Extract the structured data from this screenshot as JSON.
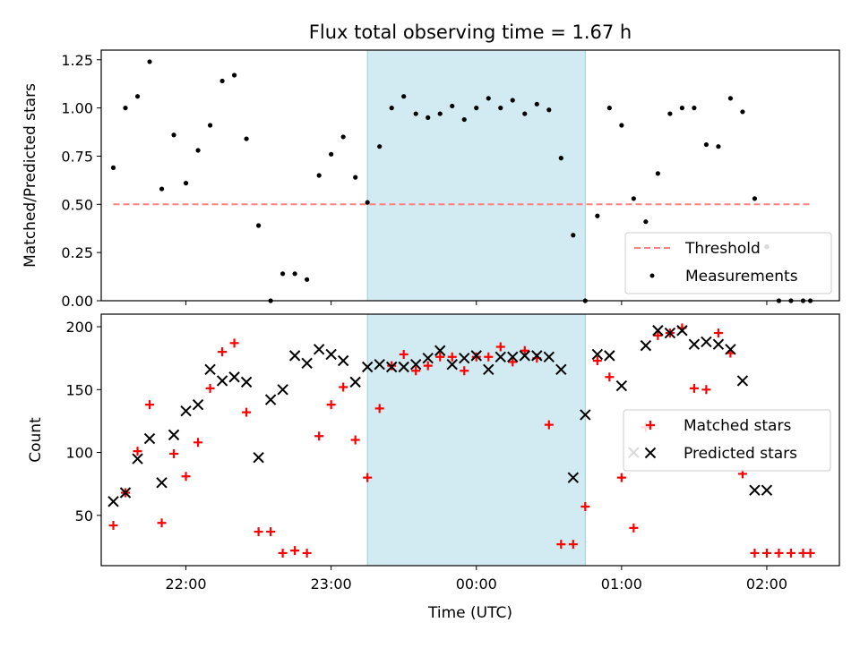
{
  "chart_data": [
    {
      "type": "scatter",
      "title": "Flux total observing time = 1.67 h",
      "xlabel": "",
      "ylabel": "Matched/Predicted stars",
      "xlim": [
        "21:25",
        "02:30"
      ],
      "ylim": [
        0,
        1.3
      ],
      "yticks": [
        "0.00",
        "0.25",
        "0.50",
        "0.75",
        "1.00",
        "1.25"
      ],
      "highlight_span": [
        "23:15",
        "00:45"
      ],
      "highlight_color": "#add8e6",
      "legend_position": "lower right",
      "threshold": {
        "name": "Threshold",
        "value": 0.5,
        "x_range": [
          "21:30",
          "02:18"
        ],
        "color": "#ff8080",
        "style": "dashed"
      },
      "series": [
        {
          "name": "Measurements",
          "color": "#000000",
          "marker": "dot",
          "x": [
            "21:30",
            "21:35",
            "21:40",
            "21:45",
            "21:50",
            "21:55",
            "22:00",
            "22:05",
            "22:10",
            "22:15",
            "22:20",
            "22:25",
            "22:30",
            "22:35",
            "22:40",
            "22:45",
            "22:50",
            "22:55",
            "23:00",
            "23:05",
            "23:10",
            "23:15",
            "23:20",
            "23:25",
            "23:30",
            "23:35",
            "23:40",
            "23:45",
            "23:50",
            "23:55",
            "00:00",
            "00:05",
            "00:10",
            "00:15",
            "00:20",
            "00:25",
            "00:30",
            "00:35",
            "00:40",
            "00:45",
            "00:50",
            "00:55",
            "01:00",
            "01:05",
            "01:10",
            "01:15",
            "01:20",
            "01:25",
            "01:30",
            "01:35",
            "01:40",
            "01:45",
            "01:50",
            "01:55",
            "02:00",
            "02:05",
            "02:10",
            "02:15",
            "02:18"
          ],
          "y": [
            0.69,
            1.0,
            1.06,
            1.24,
            0.58,
            0.86,
            0.61,
            0.78,
            0.91,
            1.14,
            1.17,
            0.84,
            0.39,
            0.0,
            0.14,
            0.14,
            0.11,
            0.65,
            0.76,
            0.85,
            0.64,
            0.51,
            0.8,
            1.0,
            1.06,
            0.97,
            0.95,
            0.97,
            1.01,
            0.94,
            1.0,
            1.05,
            1.0,
            1.04,
            0.97,
            1.02,
            0.99,
            0.74,
            0.34,
            0.0,
            0.44,
            1.0,
            0.91,
            0.53,
            0.41,
            0.66,
            0.97,
            1.0,
            1.0,
            0.81,
            0.8,
            1.05,
            0.98,
            0.53,
            0.28,
            0.0,
            0.0,
            0.0,
            0.0
          ]
        }
      ]
    },
    {
      "type": "scatter",
      "title": "",
      "xlabel": "Time (UTC)",
      "ylabel": "Count",
      "xlim": [
        "21:25",
        "02:30"
      ],
      "ylim": [
        10,
        210
      ],
      "yticks": [
        "50",
        "100",
        "150",
        "200"
      ],
      "xticks": [
        "22:00",
        "23:00",
        "00:00",
        "01:00",
        "02:00"
      ],
      "highlight_span": [
        "23:15",
        "00:45"
      ],
      "highlight_color": "#add8e6",
      "legend_position": "right",
      "series": [
        {
          "name": "Matched stars",
          "color": "#ff0000",
          "marker": "plus",
          "x": [
            "21:30",
            "21:35",
            "21:40",
            "21:45",
            "21:50",
            "21:55",
            "22:00",
            "22:05",
            "22:10",
            "22:15",
            "22:20",
            "22:25",
            "22:30",
            "22:35",
            "22:40",
            "22:45",
            "22:50",
            "22:55",
            "23:00",
            "23:05",
            "23:10",
            "23:15",
            "23:20",
            "23:25",
            "23:30",
            "23:35",
            "23:40",
            "23:45",
            "23:50",
            "23:55",
            "00:00",
            "00:05",
            "00:10",
            "00:15",
            "00:20",
            "00:25",
            "00:30",
            "00:35",
            "00:40",
            "00:45",
            "00:50",
            "00:55",
            "01:00",
            "01:05",
            "01:10",
            "01:15",
            "01:20",
            "01:25",
            "01:30",
            "01:35",
            "01:40",
            "01:45",
            "01:50",
            "01:55",
            "02:00",
            "02:05",
            "02:10",
            "02:15",
            "02:18"
          ],
          "y": [
            42,
            68,
            101,
            138,
            44,
            99,
            81,
            108,
            151,
            180,
            187,
            132,
            37,
            37,
            20,
            22,
            20,
            113,
            138,
            152,
            110,
            80,
            135,
            169,
            178,
            165,
            169,
            176,
            176,
            165,
            176,
            176,
            184,
            172,
            181,
            175,
            122,
            27,
            27,
            57,
            173,
            160,
            80,
            40,
            120,
            193,
            195,
            199,
            151,
            150,
            195,
            179,
            83,
            20,
            20,
            20,
            20,
            20,
            20
          ]
        },
        {
          "name": "Predicted stars",
          "color": "#000000",
          "marker": "x",
          "x": [
            "21:30",
            "21:35",
            "21:40",
            "21:45",
            "21:50",
            "21:55",
            "22:00",
            "22:05",
            "22:10",
            "22:15",
            "22:20",
            "22:25",
            "22:30",
            "22:35",
            "22:40",
            "22:45",
            "22:50",
            "22:55",
            "23:00",
            "23:05",
            "23:10",
            "23:15",
            "23:20",
            "23:25",
            "23:30",
            "23:35",
            "23:40",
            "23:45",
            "23:50",
            "23:55",
            "00:00",
            "00:05",
            "00:10",
            "00:15",
            "00:20",
            "00:25",
            "00:30",
            "00:35",
            "00:40",
            "00:45",
            "00:50",
            "00:55",
            "01:00",
            "01:05",
            "01:10",
            "01:15",
            "01:20",
            "01:25",
            "01:30",
            "01:35",
            "01:40",
            "01:45",
            "01:50",
            "01:55",
            "02:00"
          ],
          "y": [
            61,
            68,
            95,
            111,
            76,
            114,
            133,
            138,
            166,
            157,
            160,
            156,
            96,
            142,
            150,
            177,
            171,
            182,
            178,
            173,
            156,
            168,
            170,
            168,
            168,
            170,
            175,
            181,
            170,
            175,
            177,
            166,
            176,
            176,
            177,
            177,
            176,
            166,
            80,
            130,
            178,
            177,
            153,
            100,
            185,
            197,
            195,
            197,
            186,
            188,
            186,
            182,
            157,
            70,
            70
          ]
        }
      ]
    }
  ]
}
